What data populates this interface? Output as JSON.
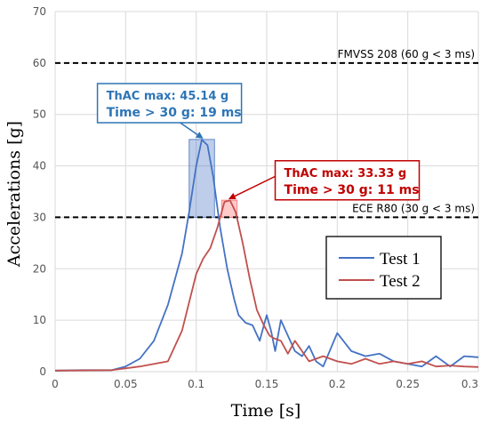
{
  "chart_data": {
    "type": "line",
    "xlabel": "Time [s]",
    "ylabel": "Accelerations [g]",
    "xlim": [
      0,
      0.3
    ],
    "ylim": [
      0,
      70
    ],
    "x_ticks": [
      "0",
      "0.05",
      "0.1",
      "0.15",
      "0.2",
      "0.25",
      "0.3"
    ],
    "y_ticks": [
      "0",
      "10",
      "20",
      "30",
      "40",
      "50",
      "60",
      "70"
    ],
    "grid": true,
    "legend_position": "lower-right",
    "series": [
      {
        "name": "Test 1",
        "color": "#4472c4",
        "points": [
          [
            0,
            0.2
          ],
          [
            0.02,
            0.3
          ],
          [
            0.04,
            0.3
          ],
          [
            0.05,
            1.0
          ],
          [
            0.06,
            2.5
          ],
          [
            0.07,
            6
          ],
          [
            0.08,
            13
          ],
          [
            0.09,
            23
          ],
          [
            0.095,
            31
          ],
          [
            0.1,
            40
          ],
          [
            0.104,
            45.1
          ],
          [
            0.108,
            44
          ],
          [
            0.112,
            38
          ],
          [
            0.117,
            28
          ],
          [
            0.122,
            20
          ],
          [
            0.127,
            14
          ],
          [
            0.13,
            11
          ],
          [
            0.135,
            9.5
          ],
          [
            0.14,
            9
          ],
          [
            0.145,
            6
          ],
          [
            0.148,
            9
          ],
          [
            0.15,
            11
          ],
          [
            0.153,
            8
          ],
          [
            0.156,
            4
          ],
          [
            0.16,
            10
          ],
          [
            0.165,
            7
          ],
          [
            0.17,
            4
          ],
          [
            0.175,
            3
          ],
          [
            0.18,
            5
          ],
          [
            0.185,
            2
          ],
          [
            0.19,
            1
          ],
          [
            0.2,
            7.5
          ],
          [
            0.21,
            4
          ],
          [
            0.22,
            3
          ],
          [
            0.23,
            3.5
          ],
          [
            0.24,
            2
          ],
          [
            0.25,
            1.5
          ],
          [
            0.26,
            1
          ],
          [
            0.265,
            2
          ],
          [
            0.27,
            3
          ],
          [
            0.28,
            1
          ],
          [
            0.29,
            3
          ],
          [
            0.3,
            2.8
          ]
        ]
      },
      {
        "name": "Test 2",
        "color": "#c0504d",
        "points": [
          [
            0,
            0.2
          ],
          [
            0.04,
            0.3
          ],
          [
            0.06,
            1
          ],
          [
            0.08,
            2
          ],
          [
            0.09,
            8
          ],
          [
            0.1,
            19
          ],
          [
            0.105,
            22
          ],
          [
            0.11,
            24
          ],
          [
            0.115,
            28
          ],
          [
            0.12,
            33
          ],
          [
            0.124,
            33.3
          ],
          [
            0.128,
            31
          ],
          [
            0.133,
            25
          ],
          [
            0.138,
            18
          ],
          [
            0.143,
            12
          ],
          [
            0.148,
            9
          ],
          [
            0.152,
            7
          ],
          [
            0.155,
            6.5
          ],
          [
            0.16,
            6
          ],
          [
            0.165,
            3.5
          ],
          [
            0.17,
            6
          ],
          [
            0.175,
            4
          ],
          [
            0.18,
            2
          ],
          [
            0.19,
            3
          ],
          [
            0.2,
            2
          ],
          [
            0.21,
            1.5
          ],
          [
            0.22,
            2.5
          ],
          [
            0.23,
            1.5
          ],
          [
            0.24,
            2
          ],
          [
            0.25,
            1.5
          ],
          [
            0.26,
            2
          ],
          [
            0.27,
            1
          ],
          [
            0.28,
            1.2
          ],
          [
            0.29,
            1
          ],
          [
            0.3,
            0.9
          ]
        ]
      }
    ],
    "reference_lines": [
      {
        "y": 60,
        "label": "FMVSS 208 (60 g < 3 ms)"
      },
      {
        "y": 30,
        "label": "ECE R80 (30 g <  3 ms)"
      }
    ],
    "highlight_regions": [
      {
        "x": [
          0.095,
          0.113
        ],
        "y": [
          30,
          45.14
        ],
        "color": "#4472c4"
      },
      {
        "x": [
          0.118,
          0.129
        ],
        "y": [
          30,
          33.33
        ],
        "color": "#ff6666"
      }
    ],
    "annotations": [
      {
        "line1": "ThAC max:   45.14 g",
        "line2": "Time  > 30 g: 19 ms",
        "color": "#2e75b6",
        "target": [
          0.104,
          45.14
        ],
        "box_anchor": [
          0.03,
          56
        ]
      },
      {
        "line1": "ThAC max:   33.33 g",
        "line2": "Time  > 30 g: 11 ms",
        "color": "#c00000",
        "target": [
          0.124,
          33.33
        ],
        "box_anchor": [
          0.156,
          41
        ]
      }
    ]
  }
}
